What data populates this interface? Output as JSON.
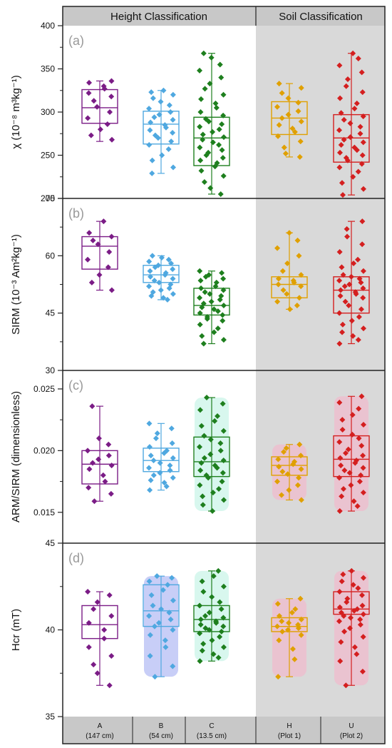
{
  "headers": {
    "left": "Height Classification",
    "right": "Soil Classification"
  },
  "categories": [
    {
      "code": "A",
      "sub": "(147 cm)",
      "color": "#7b1c86"
    },
    {
      "code": "B",
      "sub": "(54 cm)",
      "color": "#4fa8e0"
    },
    {
      "code": "C",
      "sub": "(13.5 cm)",
      "color": "#1e7f1e"
    },
    {
      "code": "H",
      "sub": "(Plot 1)",
      "color": "#e0a000"
    },
    {
      "code": "U",
      "sub": "(Plot 2)",
      "color": "#d41f1f"
    }
  ],
  "colors": {
    "soil_region": "#d9d9d9",
    "header_bg": "#c8c8c8",
    "panel_letter": "#999999",
    "halo_d_B": "#9aa6f0",
    "halo_c_C": "#b8f0e0",
    "halo_soil": "#f7b0c8"
  },
  "chart_data": [
    {
      "type": "box",
      "panel": "(a)",
      "ylabel": "χ (10⁻⁸ m³kg⁻¹)",
      "ylim": [
        200,
        400
      ],
      "yticks": [
        200,
        250,
        300,
        350,
        400
      ],
      "boxes": [
        {
          "category": "A",
          "whisker_low": 266,
          "q1": 287,
          "median": 305,
          "q3": 326,
          "whisker_high": 336,
          "points": [
            336,
            334,
            330,
            327,
            322,
            318,
            313,
            306,
            300,
            293,
            286,
            280,
            273,
            268
          ]
        },
        {
          "category": "B",
          "whisker_low": 229,
          "q1": 263,
          "median": 286,
          "q3": 301,
          "whisker_high": 325,
          "points": [
            325,
            323,
            320,
            316,
            312,
            308,
            304,
            300,
            297,
            294,
            291,
            288,
            285,
            282,
            279,
            276,
            273,
            270,
            266,
            262,
            257,
            250,
            244,
            236,
            229
          ]
        },
        {
          "category": "C",
          "whisker_low": 205,
          "q1": 238,
          "median": 270,
          "q3": 294,
          "whisker_high": 368,
          "points": [
            368,
            363,
            355,
            348,
            340,
            333,
            327,
            320,
            315,
            310,
            305,
            300,
            296,
            292,
            289,
            286,
            283,
            280,
            277,
            274,
            271,
            268,
            265,
            262,
            259,
            256,
            253,
            250,
            247,
            244,
            241,
            237,
            232,
            226,
            219,
            212,
            205
          ]
        },
        {
          "category": "H",
          "whisker_low": 248,
          "q1": 274,
          "median": 293,
          "q3": 312,
          "whisker_high": 333,
          "points": [
            333,
            328,
            322,
            316,
            311,
            306,
            301,
            297,
            293,
            289,
            285,
            281,
            277,
            272,
            266,
            259,
            252,
            248
          ]
        },
        {
          "category": "U",
          "whisker_low": 204,
          "q1": 242,
          "median": 270,
          "q3": 297,
          "whisker_high": 368,
          "points": [
            368,
            362,
            354,
            346,
            338,
            330,
            323,
            316,
            310,
            304,
            299,
            295,
            291,
            287,
            283,
            279,
            275,
            271,
            268,
            265,
            262,
            259,
            256,
            253,
            250,
            247,
            244,
            240,
            236,
            231,
            225,
            218,
            211,
            204
          ]
        }
      ]
    },
    {
      "type": "box",
      "panel": "(b)",
      "ylabel": "SIRM (10⁻³ Am²kg⁻¹)",
      "ylim": [
        30,
        75
      ],
      "yticks": [
        30,
        45,
        60,
        75
      ],
      "boxes": [
        {
          "category": "A",
          "whisker_low": 51,
          "q1": 56.5,
          "median": 62.5,
          "q3": 65,
          "whisker_high": 69,
          "points": [
            69,
            66,
            65,
            64,
            63,
            61,
            59,
            57,
            55,
            53,
            51
          ]
        },
        {
          "category": "B",
          "whisker_low": 48.5,
          "q1": 53,
          "median": 55,
          "q3": 57.5,
          "whisker_high": 60,
          "points": [
            60,
            59.5,
            59,
            58.5,
            58,
            57.5,
            57,
            56.5,
            56,
            55.5,
            55,
            54.5,
            54,
            53.5,
            53,
            52.5,
            52,
            51.5,
            51,
            50.5,
            50,
            49.5,
            49,
            48.5
          ]
        },
        {
          "category": "C",
          "whisker_low": 37,
          "q1": 44.5,
          "median": 47,
          "q3": 51.5,
          "whisker_high": 56,
          "points": [
            56,
            55.5,
            55,
            54.5,
            54,
            53.5,
            53,
            52,
            51.5,
            51,
            50.5,
            50,
            49.5,
            49,
            48.5,
            48,
            47.5,
            47,
            46.5,
            46,
            45.5,
            45,
            44.5,
            44,
            43.5,
            43,
            42,
            41,
            40,
            39,
            38,
            37
          ]
        },
        {
          "category": "H",
          "whisker_low": 46,
          "q1": 49,
          "median": 52.5,
          "q3": 54.5,
          "whisker_high": 66,
          "points": [
            66,
            64,
            62,
            60,
            58,
            56,
            55,
            54,
            53.5,
            53,
            52.5,
            52,
            51,
            50,
            49,
            48,
            47,
            46
          ]
        },
        {
          "category": "U",
          "whisker_low": 37,
          "q1": 45,
          "median": 51,
          "q3": 54.5,
          "whisker_high": 69,
          "points": [
            69,
            67,
            65,
            63,
            61,
            59,
            58,
            57,
            56,
            55,
            54.5,
            54,
            53.5,
            53,
            52.5,
            52,
            51.5,
            51,
            50.5,
            50,
            49.5,
            49,
            48,
            47,
            46,
            45,
            44,
            43,
            42,
            41,
            40,
            39,
            38,
            37
          ]
        }
      ]
    },
    {
      "type": "box",
      "panel": "(c)",
      "ylabel": "ARM/SIRM (dimensionless)",
      "ylim": [
        0.0125,
        0.0265
      ],
      "yticks": [
        0.015,
        0.02,
        0.025
      ],
      "ytick_labels": [
        "0.015",
        "0.020",
        "0.025"
      ],
      "boxes": [
        {
          "category": "A",
          "whisker_low": 0.0159,
          "q1": 0.0173,
          "median": 0.0189,
          "q3": 0.02,
          "whisker_high": 0.0236,
          "points": [
            0.0236,
            0.021,
            0.0205,
            0.02,
            0.0196,
            0.0193,
            0.019,
            0.0188,
            0.0185,
            0.018,
            0.0175,
            0.017,
            0.0165,
            0.0159
          ]
        },
        {
          "category": "B",
          "whisker_low": 0.0168,
          "q1": 0.0183,
          "median": 0.0192,
          "q3": 0.0202,
          "whisker_high": 0.0222,
          "points": [
            0.0222,
            0.0218,
            0.0214,
            0.021,
            0.0206,
            0.0203,
            0.02,
            0.0198,
            0.0196,
            0.0194,
            0.0192,
            0.019,
            0.0188,
            0.0186,
            0.0184,
            0.0182,
            0.018,
            0.0178,
            0.0176,
            0.0174,
            0.0171,
            0.0168
          ]
        },
        {
          "category": "C",
          "whisker_low": 0.0151,
          "q1": 0.0179,
          "median": 0.0191,
          "q3": 0.0211,
          "whisker_high": 0.0243,
          "points": [
            0.0243,
            0.0238,
            0.0233,
            0.0228,
            0.0224,
            0.022,
            0.0216,
            0.0212,
            0.0209,
            0.0206,
            0.0203,
            0.02,
            0.0197,
            0.0194,
            0.0192,
            0.019,
            0.0188,
            0.0186,
            0.0184,
            0.0182,
            0.018,
            0.0178,
            0.0175,
            0.0172,
            0.0169,
            0.0166,
            0.0163,
            0.016,
            0.0156,
            0.0151
          ]
        },
        {
          "category": "H",
          "whisker_low": 0.016,
          "q1": 0.018,
          "median": 0.0188,
          "q3": 0.0195,
          "whisker_high": 0.0205,
          "points": [
            0.0205,
            0.0202,
            0.0199,
            0.0196,
            0.0193,
            0.0191,
            0.0189,
            0.0187,
            0.0185,
            0.0183,
            0.0181,
            0.0178,
            0.0175,
            0.0172,
            0.0168,
            0.0164,
            0.016
          ]
        },
        {
          "category": "U",
          "whisker_low": 0.0151,
          "q1": 0.0179,
          "median": 0.0193,
          "q3": 0.0212,
          "whisker_high": 0.0244,
          "points": [
            0.0244,
            0.0239,
            0.0234,
            0.0229,
            0.0225,
            0.0221,
            0.0217,
            0.0213,
            0.021,
            0.0207,
            0.0204,
            0.0201,
            0.0198,
            0.0196,
            0.0194,
            0.0192,
            0.019,
            0.0188,
            0.0186,
            0.0184,
            0.0182,
            0.018,
            0.0178,
            0.0175,
            0.0172,
            0.0169,
            0.0166,
            0.0163,
            0.0159,
            0.0155,
            0.0151
          ]
        }
      ]
    },
    {
      "type": "box",
      "panel": "(d)",
      "ylabel": "Hcr (mT)",
      "ylim": [
        35,
        45
      ],
      "yticks": [
        35,
        40,
        45
      ],
      "boxes": [
        {
          "category": "A",
          "whisker_low": 36.8,
          "q1": 39.5,
          "median": 40.3,
          "q3": 41.4,
          "whisker_high": 42.2,
          "points": [
            42.2,
            42.0,
            41.6,
            41.2,
            40.8,
            40.4,
            40.0,
            39.5,
            39.0,
            38.5,
            38.0,
            37.5,
            36.8
          ]
        },
        {
          "category": "B",
          "whisker_low": 37.3,
          "q1": 40.2,
          "median": 41.1,
          "q3": 42.6,
          "whisker_high": 43.1,
          "points": [
            43.1,
            43.0,
            42.8,
            42.6,
            42.3,
            42.0,
            41.7,
            41.4,
            41.2,
            41.0,
            40.8,
            40.6,
            40.4,
            40.2,
            40.0,
            39.7,
            39.4,
            39.0,
            38.5,
            37.9,
            37.3
          ]
        },
        {
          "category": "C",
          "whisker_low": 38.2,
          "q1": 39.9,
          "median": 40.6,
          "q3": 41.4,
          "whisker_high": 43.4,
          "points": [
            43.4,
            43.1,
            42.8,
            42.5,
            42.2,
            41.9,
            41.6,
            41.4,
            41.2,
            41.0,
            40.8,
            40.7,
            40.6,
            40.5,
            40.4,
            40.3,
            40.2,
            40.1,
            40.0,
            39.9,
            39.8,
            39.6,
            39.4,
            39.2,
            39.0,
            38.8,
            38.6,
            38.4,
            38.2
          ]
        },
        {
          "category": "H",
          "whisker_low": 37.3,
          "q1": 39.9,
          "median": 40.2,
          "q3": 40.7,
          "whisker_high": 41.8,
          "points": [
            41.8,
            41.5,
            41.2,
            41.0,
            40.8,
            40.6,
            40.5,
            40.4,
            40.3,
            40.2,
            40.1,
            40.0,
            39.9,
            39.7,
            39.4,
            38.9,
            38.3,
            37.3
          ]
        },
        {
          "category": "U",
          "whisker_low": 36.8,
          "q1": 40.9,
          "median": 41.2,
          "q3": 42.2,
          "whisker_high": 43.4,
          "points": [
            43.4,
            43.2,
            43.0,
            42.8,
            42.6,
            42.4,
            42.2,
            42.0,
            41.8,
            41.6,
            41.4,
            41.3,
            41.2,
            41.1,
            41.0,
            40.9,
            40.8,
            40.7,
            40.6,
            40.5,
            40.3,
            40.1,
            39.9,
            39.6,
            39.3,
            39.0,
            38.6,
            38.2,
            37.6,
            36.8
          ]
        }
      ]
    }
  ]
}
